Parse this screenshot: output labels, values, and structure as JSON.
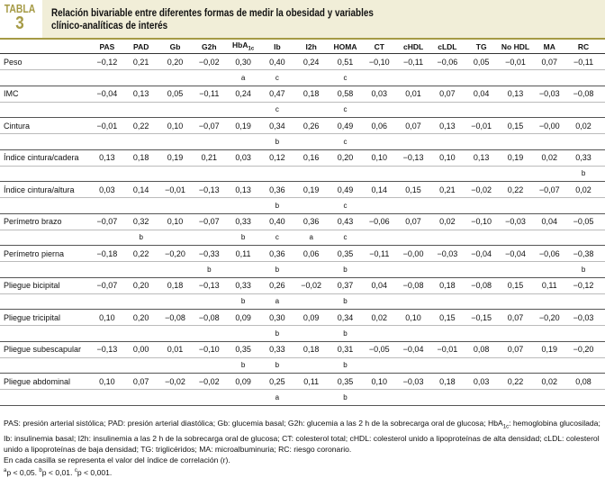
{
  "header": {
    "tabla_word": "TABLA",
    "tabla_number": "3",
    "title_line1": "Relación bivariable entre diferentes formas de medir la obesidad y variables",
    "title_line2": "clínico-analíticas de interés"
  },
  "colors": {
    "accent": "#a59a45",
    "title_band": "#f1eed8"
  },
  "columns": [
    "PAS",
    "PAD",
    "Gb",
    "G2h",
    "HbA",
    "Ib",
    "I2h",
    "HOMA",
    "CT",
    "cHDL",
    "cLDL",
    "TG",
    "No HDL",
    "MA",
    "RC"
  ],
  "hba_sub": "1c",
  "rows": [
    {
      "label": "Peso",
      "values": [
        "−0,12",
        "0,21",
        "0,20",
        "−0,02",
        "0,30",
        "0,40",
        "0,24",
        "0,51",
        "−0,10",
        "−0,11",
        "−0,06",
        "0,05",
        "−0,01",
        "0,07",
        "−0,11"
      ],
      "sig": [
        "",
        "",
        "",
        "",
        "a",
        "c",
        "",
        "c",
        "",
        "",
        "",
        "",
        "",
        "",
        ""
      ]
    },
    {
      "label": "IMC",
      "values": [
        "−0,04",
        "0,13",
        "0,05",
        "−0,11",
        "0,24",
        "0,47",
        "0,18",
        "0,58",
        "0,03",
        "0,01",
        "0,07",
        "0,04",
        "0,13",
        "−0,03",
        "−0,08"
      ],
      "sig": [
        "",
        "",
        "",
        "",
        "",
        "c",
        "",
        "c",
        "",
        "",
        "",
        "",
        "",
        "",
        ""
      ]
    },
    {
      "label": "Cintura",
      "values": [
        "−0,01",
        "0,22",
        "0,10",
        "−0,07",
        "0,19",
        "0,34",
        "0,26",
        "0,49",
        "0,06",
        "0,07",
        "0,13",
        "−0,01",
        "0,15",
        "−0,00",
        "0,02"
      ],
      "sig": [
        "",
        "",
        "",
        "",
        "",
        "b",
        "",
        "c",
        "",
        "",
        "",
        "",
        "",
        "",
        ""
      ]
    },
    {
      "label": "Índice cintura/cadera",
      "values": [
        "0,13",
        "0,18",
        "0,19",
        "0,21",
        "0,03",
        "0,12",
        "0,16",
        "0,20",
        "0,10",
        "−0,13",
        "0,10",
        "0,13",
        "0,19",
        "0,02",
        "0,33"
      ],
      "sig": [
        "",
        "",
        "",
        "",
        "",
        "",
        "",
        "",
        "",
        "",
        "",
        "",
        "",
        "",
        "b"
      ]
    },
    {
      "label": "Índice cintura/altura",
      "values": [
        "0,03",
        "0,14",
        "−0,01",
        "−0,13",
        "0,13",
        "0,36",
        "0,19",
        "0,49",
        "0,14",
        "0,15",
        "0,21",
        "−0,02",
        "0,22",
        "−0,07",
        "0,02"
      ],
      "sig": [
        "",
        "",
        "",
        "",
        "",
        "b",
        "",
        "c",
        "",
        "",
        "",
        "",
        "",
        "",
        ""
      ]
    },
    {
      "label": "Perímetro brazo",
      "values": [
        "−0,07",
        "0,32",
        "0,10",
        "−0,07",
        "0,33",
        "0,40",
        "0,36",
        "0,43",
        "−0,06",
        "0,07",
        "0,02",
        "−0,10",
        "−0,03",
        "0,04",
        "−0,05"
      ],
      "sig": [
        "",
        "b",
        "",
        "",
        "b",
        "c",
        "a",
        "c",
        "",
        "",
        "",
        "",
        "",
        "",
        ""
      ]
    },
    {
      "label": "Perímetro pierna",
      "values": [
        "−0,18",
        "0,22",
        "−0,20",
        "−0,33",
        "0,11",
        "0,36",
        "0,06",
        "0,35",
        "−0,11",
        "−0,00",
        "−0,03",
        "−0,04",
        "−0,04",
        "−0,06",
        "−0,38"
      ],
      "sig": [
        "",
        "",
        "",
        "b",
        "",
        "b",
        "",
        "b",
        "",
        "",
        "",
        "",
        "",
        "",
        "b"
      ]
    },
    {
      "label": "Pliegue bicipital",
      "values": [
        "−0,07",
        "0,20",
        "0,18",
        "−0,13",
        "0,33",
        "0,26",
        "−0,02",
        "0,37",
        "0,04",
        "−0,08",
        "0,18",
        "−0,08",
        "0,15",
        "0,11",
        "−0,12"
      ],
      "sig": [
        "",
        "",
        "",
        "",
        "b",
        "a",
        "",
        "b",
        "",
        "",
        "",
        "",
        "",
        "",
        ""
      ]
    },
    {
      "label": "Pliegue tricipital",
      "values": [
        "0,10",
        "0,20",
        "−0,08",
        "−0,08",
        "0,09",
        "0,30",
        "0,09",
        "0,34",
        "0,02",
        "0,10",
        "0,15",
        "−0,15",
        "0,07",
        "−0,20",
        "−0,03"
      ],
      "sig": [
        "",
        "",
        "",
        "",
        "",
        "b",
        "",
        "b",
        "",
        "",
        "",
        "",
        "",
        "",
        ""
      ]
    },
    {
      "label": "Pliegue subescapular",
      "values": [
        "−0,13",
        "0,00",
        "0,01",
        "−0,10",
        "0,35",
        "0,33",
        "0,18",
        "0,31",
        "−0,05",
        "−0,04",
        "−0,01",
        "0,08",
        "0,07",
        "0,19",
        "−0,20"
      ],
      "sig": [
        "",
        "",
        "",
        "",
        "b",
        "b",
        "",
        "b",
        "",
        "",
        "",
        "",
        "",
        "",
        ""
      ]
    },
    {
      "label": "Pliegue abdominal",
      "values": [
        "0,10",
        "0,07",
        "−0,02",
        "−0,02",
        "0,09",
        "0,25",
        "0,11",
        "0,35",
        "0,10",
        "−0,03",
        "0,18",
        "0,03",
        "0,22",
        "0,02",
        "0,08"
      ],
      "sig": [
        "",
        "",
        "",
        "",
        "",
        "a",
        "",
        "b",
        "",
        "",
        "",
        "",
        "",
        "",
        ""
      ]
    }
  ],
  "footnotes": {
    "abbrev_part1": "PAS: presión arterial sistólica; PAD: presión arterial diastólica; Gb: glucemia basal; G2h: glucemia a las 2 h de la sobrecarga oral de glucosa; HbA",
    "abbrev_sub": "1c",
    "abbrev_part2": ": hemoglobina glucosilada; Ib: insulinemia basal; I2h: insulinemia a las 2 h de la sobrecarga oral de glucosa; CT: colesterol total; cHDL: colesterol unido a lipoproteínas de alta densidad; cLDL: colesterol unido a lipoproteínas de baja densidad; TG: triglicéridos; MA: microalbuminuria; RC: riesgo coronario.",
    "note": "En cada casilla se representa el valor del índice de correlación (r).",
    "sig_a_mark": "a",
    "sig_a": "p < 0,05. ",
    "sig_b_mark": "b",
    "sig_b": "p < 0,01. ",
    "sig_c_mark": "c",
    "sig_c": "p < 0,001."
  }
}
